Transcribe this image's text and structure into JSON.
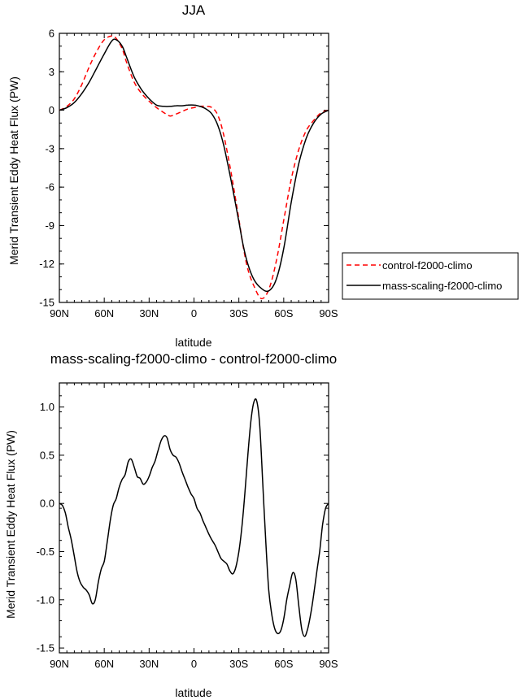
{
  "chart_data": [
    {
      "type": "line",
      "title": "JJA",
      "xlabel": "latitude",
      "ylabel": "Merid Transient Eddy Heat Flux (PW)",
      "xlim": [
        90,
        -90
      ],
      "ylim": [
        -15,
        6
      ],
      "x_ticks": [
        90,
        60,
        30,
        0,
        -30,
        -60,
        -90
      ],
      "x_tick_labels": [
        "90N",
        "60N",
        "30N",
        "0",
        "30S",
        "60S",
        "90S"
      ],
      "y_ticks": [
        6,
        3,
        0,
        -3,
        -6,
        -9,
        -12,
        -15
      ],
      "y_tick_labels": [
        "6",
        "3",
        "0",
        "-3",
        "-6",
        "-9",
        "-12",
        "-15"
      ],
      "legend_position": "right",
      "series": [
        {
          "name": "control-f2000-climo",
          "color": "#ff0000",
          "dash": "dashed",
          "x": [
            90,
            85,
            80,
            75,
            70,
            65,
            60,
            55,
            52,
            48,
            45,
            40,
            35,
            30,
            25,
            20,
            16,
            12,
            8,
            4,
            0,
            -4,
            -8,
            -12,
            -16,
            -20,
            -25,
            -30,
            -33,
            -36,
            -40,
            -45,
            -50,
            -55,
            -60,
            -65,
            -70,
            -75,
            -80,
            -85,
            -90
          ],
          "y": [
            0,
            0.3,
            0.9,
            2.0,
            3.4,
            4.6,
            5.5,
            5.8,
            5.6,
            4.8,
            3.7,
            2.2,
            1.3,
            0.7,
            0.2,
            -0.2,
            -0.45,
            -0.3,
            -0.1,
            0.1,
            0.2,
            0.3,
            0.3,
            0.2,
            -0.4,
            -2.0,
            -5.0,
            -8.5,
            -10.7,
            -12.4,
            -13.7,
            -14.7,
            -14.0,
            -11.8,
            -8.6,
            -5.4,
            -3.1,
            -1.6,
            -0.8,
            -0.2,
            0
          ]
        },
        {
          "name": "mass-scaling-f2000-climo",
          "color": "#000000",
          "dash": "solid",
          "x": [
            90,
            85,
            80,
            75,
            70,
            65,
            60,
            55,
            52,
            48,
            45,
            40,
            35,
            30,
            25,
            20,
            16,
            12,
            8,
            4,
            0,
            -4,
            -8,
            -12,
            -16,
            -20,
            -25,
            -30,
            -33,
            -36,
            -40,
            -45,
            -50,
            -55,
            -60,
            -65,
            -70,
            -75,
            -80,
            -85,
            -90
          ],
          "y": [
            0,
            0.2,
            0.6,
            1.3,
            2.2,
            3.3,
            4.4,
            5.4,
            5.5,
            5.0,
            4.1,
            2.6,
            1.6,
            0.9,
            0.4,
            0.3,
            0.3,
            0.35,
            0.35,
            0.4,
            0.4,
            0.3,
            0.1,
            -0.3,
            -1.2,
            -2.8,
            -5.6,
            -8.7,
            -10.6,
            -12.0,
            -13.2,
            -13.9,
            -14.1,
            -13.2,
            -10.8,
            -7.2,
            -4.2,
            -2.2,
            -1.0,
            -0.3,
            0
          ]
        }
      ]
    },
    {
      "type": "line",
      "title": "mass-scaling-f2000-climo - control-f2000-climo",
      "xlabel": "latitude",
      "ylabel": "Merid Transient Eddy Heat Flux (PW)",
      "xlim": [
        90,
        -90
      ],
      "ylim": [
        -1.55,
        1.25
      ],
      "x_ticks": [
        90,
        60,
        30,
        0,
        -30,
        -60,
        -90
      ],
      "x_tick_labels": [
        "90N",
        "60N",
        "30N",
        "0",
        "30S",
        "60S",
        "90S"
      ],
      "y_ticks": [
        1.0,
        0.5,
        0.0,
        -0.5,
        -1.0,
        -1.5
      ],
      "y_tick_labels": [
        "1.0",
        "0.5",
        "0.0",
        "-0.5",
        "-1.0",
        "-1.5"
      ],
      "series": [
        {
          "color": "#000000",
          "dash": "solid",
          "x": [
            90,
            88,
            86,
            84,
            82,
            80,
            78,
            76,
            74,
            72,
            70,
            68,
            66,
            64,
            62,
            60,
            58,
            56,
            54,
            52,
            50,
            48,
            46,
            44,
            42,
            40,
            38,
            36,
            34,
            32,
            30,
            28,
            26,
            24,
            22,
            20,
            18,
            16,
            14,
            12,
            10,
            8,
            6,
            4,
            2,
            0,
            -2,
            -4,
            -6,
            -8,
            -10,
            -12,
            -14,
            -16,
            -18,
            -20,
            -22,
            -24,
            -26,
            -28,
            -30,
            -32,
            -34,
            -36,
            -38,
            -40,
            -42,
            -44,
            -46,
            -48,
            -50,
            -52,
            -54,
            -56,
            -58,
            -60,
            -62,
            -64,
            -66,
            -68,
            -70,
            -72,
            -74,
            -76,
            -78,
            -80,
            -82,
            -84,
            -86,
            -88,
            -90
          ],
          "y": [
            0,
            -0.02,
            -0.1,
            -0.25,
            -0.38,
            -0.55,
            -0.72,
            -0.82,
            -0.87,
            -0.9,
            -0.95,
            -1.04,
            -1.0,
            -0.82,
            -0.68,
            -0.6,
            -0.4,
            -0.18,
            -0.02,
            0.05,
            0.17,
            0.25,
            0.3,
            0.43,
            0.46,
            0.38,
            0.28,
            0.26,
            0.2,
            0.22,
            0.28,
            0.37,
            0.44,
            0.55,
            0.65,
            0.7,
            0.68,
            0.56,
            0.5,
            0.48,
            0.42,
            0.33,
            0.25,
            0.17,
            0.1,
            0.05,
            -0.05,
            -0.1,
            -0.18,
            -0.25,
            -0.32,
            -0.38,
            -0.43,
            -0.5,
            -0.57,
            -0.6,
            -0.63,
            -0.7,
            -0.73,
            -0.66,
            -0.5,
            -0.25,
            0.1,
            0.5,
            0.85,
            1.05,
            1.06,
            0.8,
            0.2,
            -0.4,
            -0.9,
            -1.15,
            -1.3,
            -1.35,
            -1.32,
            -1.2,
            -1.0,
            -0.85,
            -0.72,
            -0.78,
            -1.05,
            -1.3,
            -1.38,
            -1.3,
            -1.15,
            -0.95,
            -0.72,
            -0.5,
            -0.22,
            -0.05,
            0
          ]
        }
      ]
    }
  ]
}
